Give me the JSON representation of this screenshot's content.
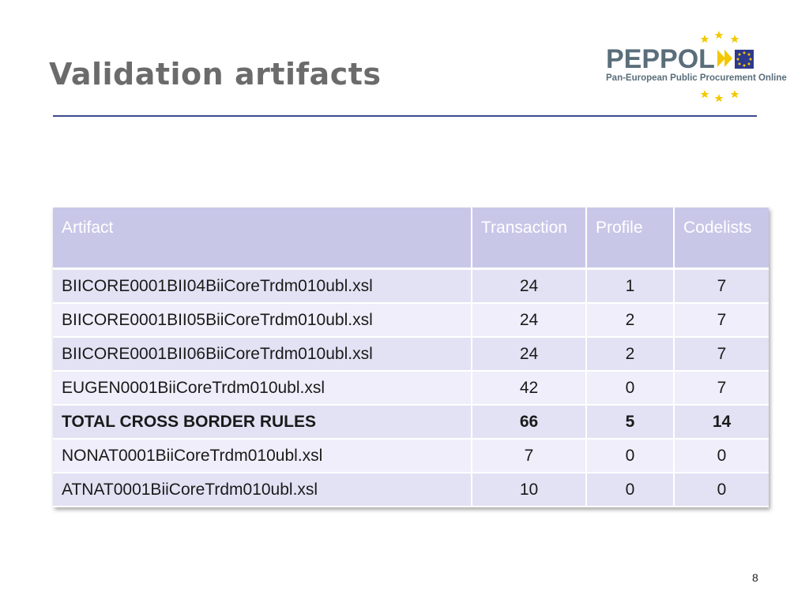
{
  "slide": {
    "title": "Validation artifacts",
    "page_number": "8"
  },
  "logo": {
    "word": "PEPPOL",
    "subtitle": "Pan-European Public Procurement Online",
    "colors": {
      "text": "#5a6e7a",
      "star": "#f2c800",
      "flag": "#2e3a8c",
      "arrow": "#f2c800"
    }
  },
  "table": {
    "headers": [
      "Artifact",
      "Transaction",
      "Profile",
      "Codelists"
    ],
    "rows": [
      [
        "BIICORE0001BII04BiiCoreTrdm010ubl.xsl",
        "24",
        "1",
        "7"
      ],
      [
        "BIICORE0001BII05BiiCoreTrdm010ubl.xsl",
        "24",
        "2",
        "7"
      ],
      [
        "BIICORE0001BII06BiiCoreTrdm010ubl.xsl",
        "24",
        "2",
        "7"
      ],
      [
        "EUGEN0001BiiCoreTrdm010ubl.xsl",
        "42",
        "0",
        "7"
      ],
      [
        "TOTAL CROSS BORDER RULES",
        "66",
        "5",
        "14"
      ],
      [
        "NONAT0001BiiCoreTrdm010ubl.xsl",
        "7",
        "0",
        "0"
      ],
      [
        "ATNAT0001BiiCoreTrdm010ubl.xsl",
        "10",
        "0",
        "0"
      ]
    ],
    "colors": {
      "header": "#c9c7e8",
      "row_odd": "#e3e2f4",
      "row_even": "#efeefa"
    }
  }
}
